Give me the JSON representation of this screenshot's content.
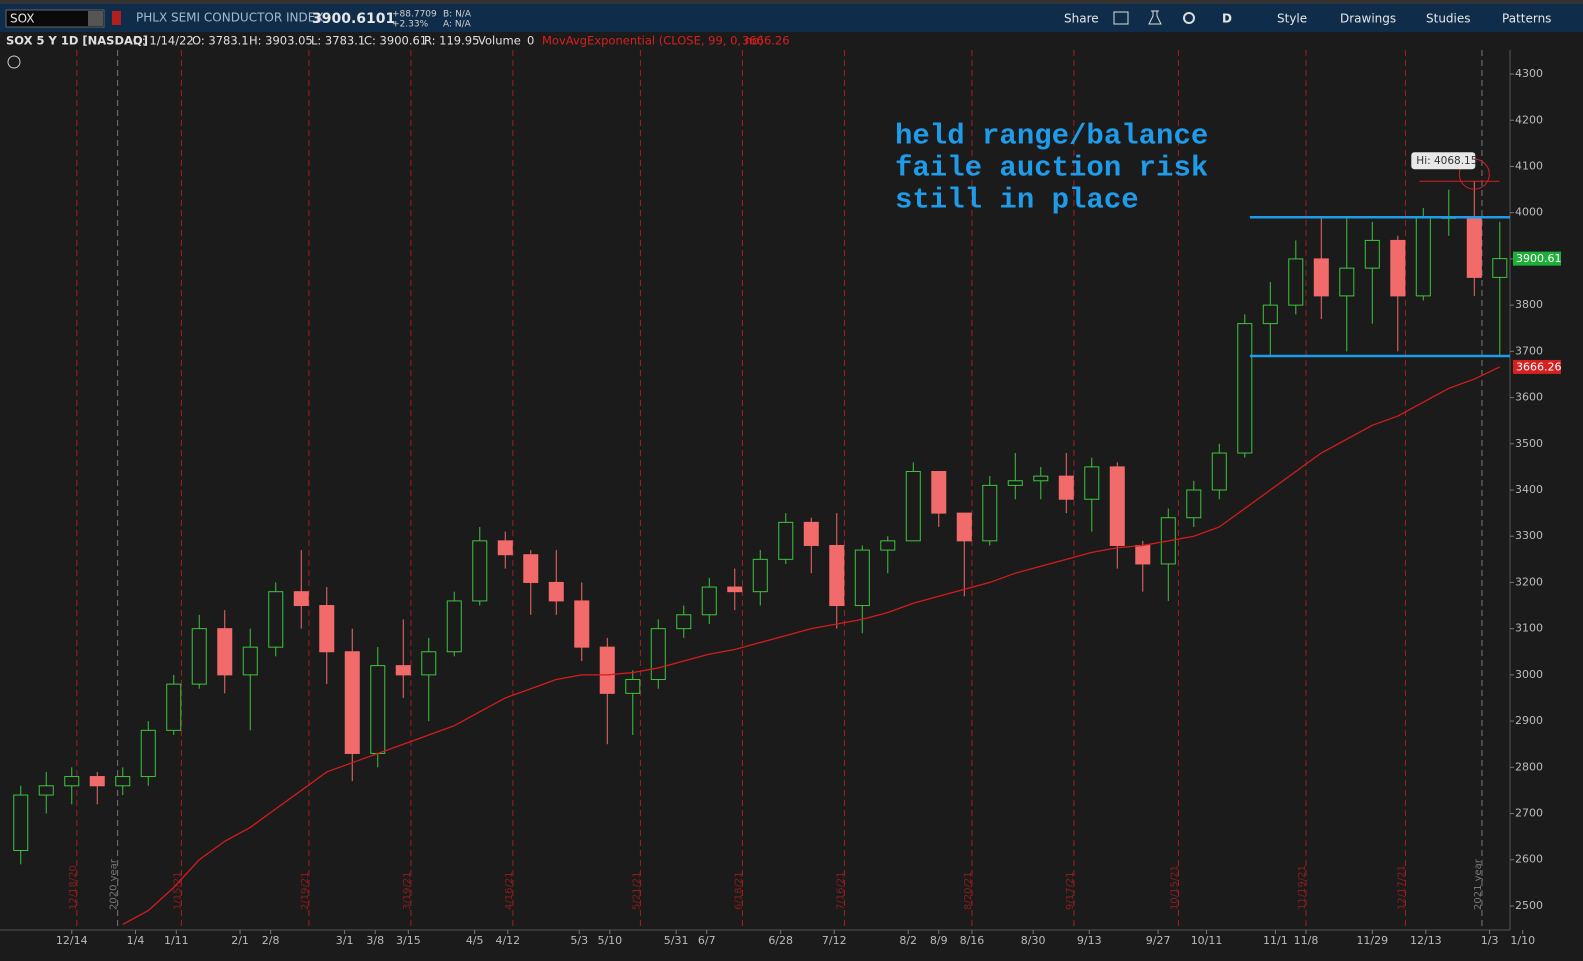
{
  "toolbar": {
    "symbol": "SOX",
    "description": "PHLX SEMI CONDUCTOR INDEX",
    "last": "3900.6101",
    "change": "+88.7709",
    "change_pct": "+2.33%",
    "bid": "B: N/A",
    "ask": "A: N/A",
    "share": "Share",
    "period": "D",
    "style": "Style",
    "drawings": "Drawings",
    "studies": "Studies",
    "patterns": "Patterns"
  },
  "info_bar": {
    "title": "SOX 5 Y 1D [NASDAQ]",
    "date": "D: 1/14/22",
    "open": "O: 3783.1",
    "high": "H: 3903.05",
    "low": "L: 3783.1",
    "close": "C: 3900.61",
    "range": "R: 119.95",
    "volume_label": "Volume",
    "volume": "0",
    "study_value": "3666.26"
  },
  "chart_data": {
    "type": "candlestick",
    "annotation": [
      "held range/balance",
      "faile auction risk",
      "still in place"
    ],
    "hi_label": "Hi: 4068.15",
    "x": [
      -2,
      -1,
      0,
      1,
      2,
      3,
      4,
      5,
      6,
      7,
      8,
      9,
      10,
      11,
      12,
      13,
      14,
      15,
      16,
      17,
      18,
      19,
      20,
      21,
      22,
      23,
      24,
      25,
      26,
      27,
      28,
      29,
      30,
      31,
      32,
      33,
      34,
      35,
      36,
      37,
      38,
      39,
      40,
      41,
      42,
      43,
      44,
      45,
      46,
      47,
      48,
      49,
      50,
      51,
      52,
      53,
      54,
      55,
      56
    ],
    "open": [
      2620,
      2740,
      2760,
      2780,
      2760,
      2780,
      2880,
      2980,
      3100,
      3000,
      3060,
      3180,
      3150,
      3050,
      2830,
      3020,
      3000,
      3050,
      3160,
      3290,
      3260,
      3200,
      3160,
      3060,
      2960,
      2990,
      3100,
      3130,
      3190,
      3180,
      3250,
      3330,
      3280,
      3150,
      3270,
      3290,
      3440,
      3350,
      3290,
      3410,
      3420,
      3430,
      3380,
      3450,
      3280,
      3240,
      3340,
      3400,
      3480,
      3760,
      3800,
      3900,
      3820,
      3880,
      3940,
      3820,
      3990,
      3990,
      3860
    ],
    "high": [
      2760,
      2790,
      2800,
      2790,
      2800,
      2900,
      3000,
      3130,
      3140,
      3100,
      3200,
      3270,
      3190,
      3100,
      3060,
      3120,
      3080,
      3180,
      3320,
      3310,
      3270,
      3270,
      3200,
      3080,
      3010,
      3120,
      3150,
      3210,
      3230,
      3270,
      3350,
      3340,
      3350,
      3280,
      3300,
      3460,
      3440,
      3350,
      3430,
      3480,
      3450,
      3480,
      3470,
      3460,
      3290,
      3360,
      3420,
      3500,
      3780,
      3850,
      3940,
      3990,
      3990,
      3980,
      3950,
      4010,
      4050,
      4068.15,
      3980
    ],
    "low": [
      2590,
      2700,
      2720,
      2720,
      2740,
      2760,
      2870,
      2970,
      2960,
      2880,
      3040,
      3100,
      2980,
      2770,
      2800,
      2950,
      2900,
      3040,
      3150,
      3230,
      3130,
      3130,
      3030,
      2850,
      2870,
      2970,
      3080,
      3110,
      3140,
      3150,
      3240,
      3220,
      3100,
      3090,
      3220,
      3290,
      3320,
      3170,
      3280,
      3380,
      3380,
      3350,
      3310,
      3230,
      3180,
      3160,
      3320,
      3380,
      3470,
      3690,
      3780,
      3770,
      3700,
      3760,
      3700,
      3810,
      3950,
      3820,
      3690
    ],
    "close": [
      2740,
      2760,
      2780,
      2760,
      2780,
      2880,
      2980,
      3100,
      3000,
      3060,
      3180,
      3150,
      3050,
      2830,
      3020,
      3000,
      3050,
      3160,
      3290,
      3260,
      3200,
      3160,
      3060,
      2960,
      2990,
      3100,
      3130,
      3190,
      3180,
      3250,
      3330,
      3280,
      3150,
      3270,
      3290,
      3440,
      3350,
      3290,
      3410,
      3420,
      3430,
      3380,
      3450,
      3280,
      3240,
      3340,
      3400,
      3480,
      3760,
      3800,
      3900,
      3820,
      3880,
      3940,
      3820,
      3990,
      3990,
      3860,
      3900.61
    ],
    "up_color": "#3ec43e",
    "down_color": "#f26b6b",
    "series": [
      {
        "name": "MovAvgExponential (CLOSE, 99, 0, no)",
        "color": "#d41c1c",
        "values": [
          null,
          null,
          null,
          null,
          2460,
          2490,
          2540,
          2600,
          2640,
          2670,
          2710,
          2750,
          2790,
          2810,
          2830,
          2850,
          2870,
          2890,
          2920,
          2950,
          2970,
          2990,
          3000,
          3000,
          3005,
          3015,
          3030,
          3045,
          3055,
          3070,
          3085,
          3100,
          3110,
          3120,
          3135,
          3155,
          3170,
          3185,
          3200,
          3220,
          3235,
          3250,
          3265,
          3275,
          3280,
          3290,
          3300,
          3320,
          3360,
          3400,
          3440,
          3480,
          3510,
          3540,
          3560,
          3590,
          3620,
          3640,
          3666.26
        ]
      }
    ],
    "levels": [
      {
        "value": 3990,
        "from_x": 46.2,
        "color": "#1e9be9"
      },
      {
        "value": 3690,
        "from_x": 46.2,
        "color": "#1e9be9"
      }
    ],
    "price_tags": [
      {
        "value": 3900.61,
        "color": "#1fae3a"
      },
      {
        "value": 3666.26,
        "color": "#d42020"
      }
    ],
    "markers": [
      {
        "x": 0.2,
        "label": "12/18/20"
      },
      {
        "x": 1.8,
        "label": "2020 year",
        "year": true
      },
      {
        "x": 4.3,
        "label": "1/15/21"
      },
      {
        "x": 9.3,
        "label": "2/19/21"
      },
      {
        "x": 13.3,
        "label": "3/19/21"
      },
      {
        "x": 17.3,
        "label": "4/16/21"
      },
      {
        "x": 22.3,
        "label": "5/21/21"
      },
      {
        "x": 26.3,
        "label": "6/18/21"
      },
      {
        "x": 30.3,
        "label": "7/16/21"
      },
      {
        "x": 35.3,
        "label": "8/20/21"
      },
      {
        "x": 39.3,
        "label": "9/17/21"
      },
      {
        "x": 43.4,
        "label": "10/15/21"
      },
      {
        "x": 48.4,
        "label": "11/19/21"
      },
      {
        "x": 52.3,
        "label": "12/17/21"
      },
      {
        "x": 55.3,
        "label": "2021 year",
        "year": true
      }
    ],
    "xlim": [
      -2.5,
      56.4
    ],
    "xticks": [
      {
        "value": 0,
        "label": "12/14"
      },
      {
        "value": 2.5,
        "label": "1/4"
      },
      {
        "value": 4.1,
        "label": "1/11"
      },
      {
        "value": 6.6,
        "label": "2/1"
      },
      {
        "value": 7.8,
        "label": "2/8"
      },
      {
        "value": 10.7,
        "label": "3/1"
      },
      {
        "value": 11.9,
        "label": "3/8"
      },
      {
        "value": 13.2,
        "label": "3/15"
      },
      {
        "value": 15.8,
        "label": "4/5"
      },
      {
        "value": 17.1,
        "label": "4/12"
      },
      {
        "value": 19.9,
        "label": "5/3"
      },
      {
        "value": 21.1,
        "label": "5/10"
      },
      {
        "value": 23.7,
        "label": "5/31"
      },
      {
        "value": 24.9,
        "label": "6/7"
      },
      {
        "value": 27.8,
        "label": "6/28"
      },
      {
        "value": 29.9,
        "label": "7/12"
      },
      {
        "value": 32.8,
        "label": "8/2"
      },
      {
        "value": 34.0,
        "label": "8/9"
      },
      {
        "value": 35.3,
        "label": "8/16"
      },
      {
        "value": 37.7,
        "label": "8/30"
      },
      {
        "value": 39.9,
        "label": "9/13"
      },
      {
        "value": 42.6,
        "label": "9/27"
      },
      {
        "value": 44.5,
        "label": "10/11"
      },
      {
        "value": 47.2,
        "label": "11/1"
      },
      {
        "value": 48.4,
        "label": "11/8"
      },
      {
        "value": 51.0,
        "label": "11/29"
      },
      {
        "value": 53.1,
        "label": "12/13"
      },
      {
        "value": 55.6,
        "label": "1/3"
      },
      {
        "value": 56.9,
        "label": "1/10"
      }
    ],
    "ylim": [
      2448,
      4352
    ],
    "yticks": [
      2500,
      2600,
      2700,
      2800,
      2900,
      3000,
      3100,
      3200,
      3300,
      3400,
      3500,
      3600,
      3700,
      3800,
      3900,
      4000,
      4100,
      4200,
      4300
    ]
  }
}
